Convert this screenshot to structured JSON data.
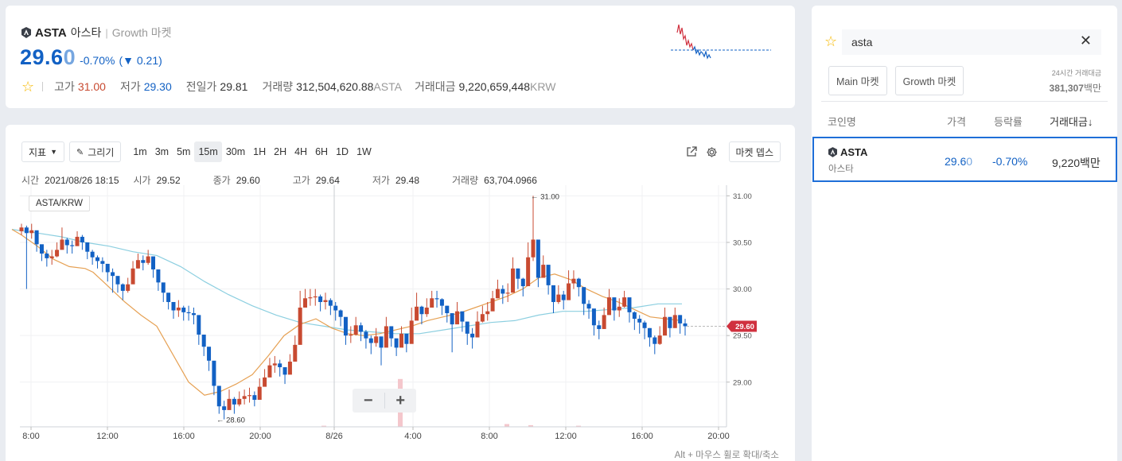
{
  "coin": {
    "symbol": "ASTA",
    "korean_name": "아스타",
    "market": "Growth 마켓",
    "price_main": "29.6",
    "price_last_digit": "0",
    "change_percent": "-0.70%",
    "change_open": "(",
    "change_arrow": "▼",
    "change_amount": "0.21)"
  },
  "stats": {
    "high_label": "고가",
    "high_value": "31.00",
    "low_label": "저가",
    "low_value": "29.30",
    "prev_label": "전일가",
    "prev_value": "29.81",
    "volume_label": "거래량",
    "volume_value": "312,504,620.88",
    "volume_unit": "ASTA",
    "turnover_label": "거래대금",
    "turnover_value": "9,220,659,448",
    "turnover_unit": "KRW"
  },
  "toolbar": {
    "indicator_label": "지표",
    "draw_label": "그리기",
    "intervals": [
      "1m",
      "3m",
      "5m",
      "15m",
      "30m",
      "1H",
      "2H",
      "4H",
      "6H",
      "1D",
      "1W"
    ],
    "active_interval": "15m",
    "depth_label": "마켓 뎁스"
  },
  "ohlc": {
    "time_label": "시간",
    "time_value": "2021/08/26 18:15",
    "open_label": "시가",
    "open_value": "29.52",
    "close_label": "종가",
    "close_value": "29.60",
    "high_label": "고가",
    "high_value": "29.64",
    "low_label": "저가",
    "low_value": "29.48",
    "volume_label": "거래량",
    "volume_value": "63,704.0966"
  },
  "pair_label": "ASTA/KRW",
  "zoom": {
    "minus": "−",
    "plus": "+"
  },
  "hint": "Alt + 마우스 휠로 확대/축소",
  "side": {
    "search_value": "asta",
    "clear_icon": "✕",
    "tabs": [
      "Main 마켓",
      "Growth 마켓"
    ],
    "vol24_label": "24시간 거래대금",
    "vol24_value": "381,307",
    "vol24_unit": "백만",
    "headers": {
      "name": "코인명",
      "price": "가격",
      "change": "등락률",
      "volume": "거래대금↓"
    },
    "row": {
      "symbol": "ASTA",
      "korean_name": "아스타",
      "price_main": "29.6",
      "price_last_digit": "0",
      "change": "-0.70%",
      "volume": "9,220백만"
    }
  },
  "colors": {
    "up": "#c84a31",
    "down": "#1261c4",
    "ma_short": "#e6a154",
    "ma_long": "#8ccfe0",
    "price_tag": "#d0313f"
  },
  "icons": [
    "star-icon",
    "pencil-icon",
    "caret-down-icon",
    "external-link-icon",
    "gear-icon",
    "close-icon",
    "coin-logo-icon"
  ],
  "chart_data": {
    "type": "candlestick",
    "y_ticks": [
      "31.00",
      "30.50",
      "30.00",
      "29.50",
      "29.00"
    ],
    "ylim": [
      28.52,
      31.08
    ],
    "x_ticks": [
      "8:00",
      "12:00",
      "16:00",
      "20:00",
      "8/26",
      "4:00",
      "8:00",
      "12:00",
      "16:00",
      "20:00"
    ],
    "high_annotation": "← 31.00",
    "low_annotation": "← 28.60",
    "last_price": "29.60",
    "closes": [
      30.66,
      30.6,
      30.63,
      30.48,
      30.38,
      30.33,
      30.35,
      30.42,
      30.53,
      30.47,
      30.46,
      30.56,
      30.5,
      30.4,
      30.34,
      30.3,
      30.27,
      30.18,
      30.14,
      30.05,
      29.98,
      30.05,
      30.22,
      30.31,
      30.28,
      30.35,
      30.21,
      30.07,
      29.96,
      29.86,
      29.77,
      29.8,
      29.75,
      29.74,
      29.72,
      29.51,
      29.38,
      29.23,
      28.96,
      28.74,
      28.7,
      28.82,
      28.76,
      28.82,
      28.85,
      28.86,
      28.81,
      28.95,
      29.05,
      29.18,
      29.2,
      29.16,
      29.08,
      29.22,
      29.4,
      29.8,
      29.9,
      29.91,
      29.92,
      29.86,
      29.88,
      29.82,
      29.77,
      29.7,
      29.5,
      29.51,
      29.61,
      29.54,
      29.47,
      29.42,
      29.49,
      29.37,
      29.6,
      29.47,
      29.37,
      29.52,
      29.41,
      29.66,
      29.81,
      29.73,
      29.8,
      29.9,
      29.89,
      29.82,
      29.74,
      29.62,
      29.76,
      29.65,
      29.52,
      29.48,
      29.65,
      29.73,
      29.76,
      29.9,
      30.0,
      29.95,
      29.96,
      30.22,
      30.11,
      30.03,
      30.34,
      30.53,
      30.12,
      30.26,
      30.04,
      29.86,
      29.94,
      29.88,
      30.06,
      30.11,
      30.02,
      29.84,
      29.79,
      29.61,
      29.57,
      29.72,
      29.91,
      29.77,
      29.81,
      29.91,
      29.75,
      29.68,
      29.64,
      29.58,
      29.48,
      29.41,
      29.5,
      29.7,
      29.58,
      29.72,
      29.63,
      29.6
    ],
    "highs": [
      30.7,
      30.68,
      30.7,
      30.56,
      30.46,
      30.42,
      30.42,
      30.5,
      30.66,
      30.55,
      30.52,
      30.62,
      30.58,
      30.46,
      30.42,
      30.36,
      30.34,
      30.24,
      30.22,
      30.12,
      30.06,
      30.12,
      30.3,
      30.38,
      30.36,
      30.42,
      30.3,
      30.14,
      30.04,
      29.94,
      29.84,
      29.88,
      29.82,
      29.82,
      29.8,
      29.6,
      29.46,
      29.32,
      29.06,
      28.84,
      28.8,
      28.92,
      28.84,
      28.9,
      28.92,
      28.94,
      28.9,
      29.04,
      29.14,
      29.26,
      29.28,
      29.24,
      29.16,
      29.3,
      29.5,
      29.98,
      30.0,
      30.0,
      30.0,
      29.94,
      29.96,
      29.9,
      29.86,
      29.78,
      29.6,
      29.6,
      29.7,
      29.64,
      29.56,
      29.5,
      29.58,
      29.46,
      29.7,
      29.56,
      29.46,
      29.6,
      29.5,
      29.8,
      29.96,
      29.82,
      29.9,
      29.98,
      29.98,
      29.9,
      29.82,
      29.72,
      29.86,
      29.74,
      29.6,
      29.58,
      29.76,
      29.82,
      29.86,
      29.98,
      30.1,
      30.04,
      30.06,
      30.34,
      30.22,
      30.12,
      30.5,
      31.0,
      30.4,
      30.36,
      30.14,
      29.96,
      30.04,
      29.98,
      30.2,
      30.2,
      30.12,
      29.94,
      29.88,
      29.7,
      29.66,
      29.8,
      30.0,
      29.86,
      29.9,
      29.98,
      29.84,
      29.76,
      29.72,
      29.66,
      29.58,
      29.5,
      29.6,
      29.8,
      29.66,
      29.8,
      29.72,
      29.68
    ],
    "lows": [
      30.58,
      30.0,
      30.54,
      30.4,
      30.3,
      30.24,
      30.26,
      30.34,
      30.44,
      30.38,
      30.38,
      30.48,
      30.42,
      30.32,
      30.26,
      30.22,
      30.18,
      30.08,
      29.96,
      29.96,
      29.88,
      29.96,
      30.14,
      30.22,
      30.2,
      30.26,
      30.12,
      29.98,
      29.86,
      29.78,
      29.68,
      29.7,
      29.66,
      29.66,
      29.62,
      29.4,
      29.28,
      29.12,
      28.86,
      28.66,
      28.6,
      28.72,
      28.66,
      28.74,
      28.76,
      28.78,
      28.74,
      28.86,
      28.96,
      29.08,
      29.1,
      29.06,
      28.98,
      29.12,
      29.3,
      29.7,
      29.8,
      29.82,
      29.82,
      29.76,
      29.78,
      29.72,
      29.66,
      29.6,
      29.4,
      29.42,
      29.5,
      29.44,
      29.36,
      29.3,
      29.38,
      29.18,
      29.5,
      29.38,
      29.28,
      29.42,
      29.32,
      29.56,
      29.7,
      29.62,
      29.7,
      29.8,
      29.8,
      29.72,
      29.64,
      29.32,
      29.66,
      29.54,
      29.4,
      29.36,
      29.56,
      29.64,
      29.66,
      29.8,
      29.9,
      29.84,
      29.86,
      30.12,
      30.0,
      29.92,
      30.24,
      30.3,
      30.02,
      30.14,
      29.94,
      29.74,
      29.84,
      29.78,
      29.96,
      30.0,
      29.92,
      29.72,
      29.68,
      29.5,
      29.46,
      29.62,
      29.8,
      29.66,
      29.7,
      29.8,
      29.64,
      29.56,
      29.52,
      29.46,
      29.38,
      29.3,
      29.4,
      29.6,
      29.48,
      29.62,
      29.52,
      29.5
    ],
    "ma_short_points": [
      [
        8,
        30.64
      ],
      [
        20,
        30.58
      ],
      [
        40,
        30.46
      ],
      [
        60,
        30.32
      ],
      [
        80,
        30.24
      ],
      [
        100,
        30.22
      ],
      [
        110,
        30.18
      ],
      [
        130,
        30.02
      ],
      [
        150,
        29.86
      ],
      [
        170,
        29.72
      ],
      [
        190,
        29.6
      ],
      [
        210,
        29.3
      ],
      [
        230,
        29.0
      ],
      [
        250,
        28.86
      ],
      [
        270,
        28.9
      ],
      [
        290,
        28.98
      ],
      [
        310,
        29.08
      ],
      [
        330,
        29.28
      ],
      [
        350,
        29.5
      ],
      [
        370,
        29.62
      ],
      [
        390,
        29.68
      ],
      [
        410,
        29.58
      ],
      [
        430,
        29.52
      ],
      [
        450,
        29.5
      ],
      [
        470,
        29.52
      ],
      [
        490,
        29.56
      ],
      [
        510,
        29.6
      ],
      [
        530,
        29.66
      ],
      [
        550,
        29.7
      ],
      [
        570,
        29.74
      ],
      [
        590,
        29.8
      ],
      [
        610,
        29.86
      ],
      [
        630,
        29.92
      ],
      [
        650,
        30.0
      ],
      [
        670,
        30.12
      ],
      [
        690,
        30.16
      ],
      [
        710,
        30.1
      ],
      [
        730,
        30.0
      ],
      [
        750,
        29.92
      ],
      [
        770,
        29.86
      ],
      [
        790,
        29.78
      ],
      [
        810,
        29.7
      ],
      [
        830,
        29.68
      ],
      [
        850,
        29.66
      ]
    ],
    "ma_long_points": [
      [
        8,
        30.64
      ],
      [
        40,
        30.6
      ],
      [
        70,
        30.56
      ],
      [
        100,
        30.5
      ],
      [
        130,
        30.46
      ],
      [
        160,
        30.4
      ],
      [
        190,
        30.36
      ],
      [
        220,
        30.24
      ],
      [
        250,
        30.08
      ],
      [
        280,
        29.94
      ],
      [
        310,
        29.82
      ],
      [
        340,
        29.72
      ],
      [
        370,
        29.64
      ],
      [
        400,
        29.6
      ],
      [
        430,
        29.56
      ],
      [
        460,
        29.54
      ],
      [
        490,
        29.52
      ],
      [
        520,
        29.52
      ],
      [
        550,
        29.56
      ],
      [
        580,
        29.6
      ],
      [
        610,
        29.64
      ],
      [
        640,
        29.66
      ],
      [
        670,
        29.72
      ],
      [
        700,
        29.76
      ],
      [
        730,
        29.76
      ],
      [
        760,
        29.78
      ],
      [
        790,
        29.8
      ],
      [
        820,
        29.84
      ],
      [
        850,
        29.84
      ]
    ],
    "volume_bars": [
      [
        496,
        0.86
      ],
      [
        400,
        0.02
      ],
      [
        630,
        0.05
      ],
      [
        660,
        0.03
      ],
      [
        720,
        0.02
      ]
    ]
  }
}
